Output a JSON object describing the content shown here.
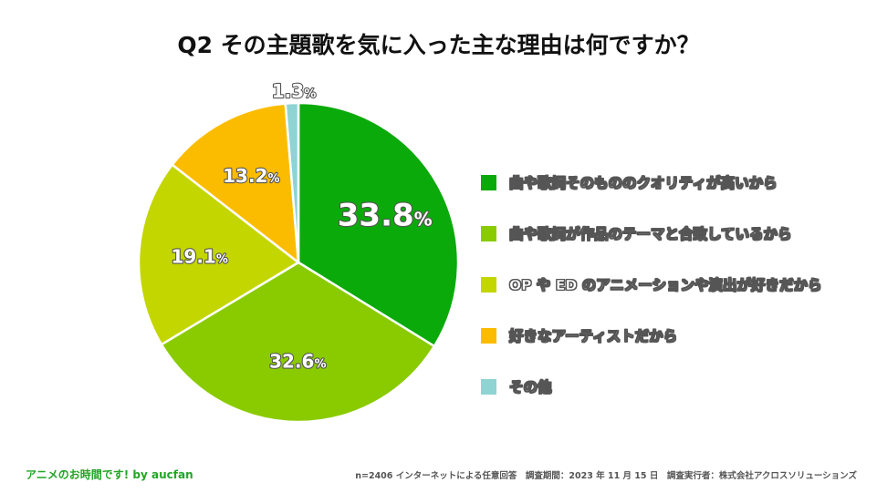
{
  "chart_data": {
    "type": "pie",
    "title": "Q2 その主題歌を気に入った主な理由は何ですか？",
    "start_angle_deg": 0,
    "direction": "clockwise",
    "slices": [
      {
        "label": "曲や歌詞そのもののクオリティが高いから",
        "value": 33.8,
        "display": "33.8",
        "color": "#0aaa0a"
      },
      {
        "label": "曲や歌詞が作品のテーマと合致しているから",
        "value": 32.6,
        "display": "32.6",
        "color": "#8acb00"
      },
      {
        "label": "OP や ED のアニメーションや演出が好きだから",
        "value": 19.1,
        "display": "19.1",
        "color": "#c4d600"
      },
      {
        "label": "好きなアーティストだから",
        "value": 13.2,
        "display": "13.2",
        "color": "#fbbc00"
      },
      {
        "label": "その他",
        "value": 1.3,
        "display": "1.3",
        "color": "#8fd3d3"
      }
    ],
    "unit": "%",
    "legend_position": "right"
  },
  "footer": {
    "brand": "アニメのお時間です! by aucfan",
    "note": "n=2406 インターネットによる任意回答　調査期間：2023 年 11 月 15 日　調査実行者：株式会社アクロスソリューションズ"
  }
}
